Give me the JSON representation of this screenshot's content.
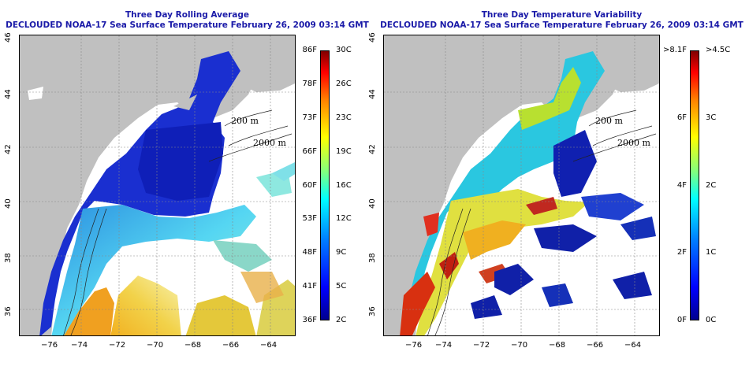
{
  "panels": [
    {
      "title": "Three Day Rolling Average",
      "subtitle": "DECLOUDED NOAA-17 Sea Surface Temperature February 26, 2009 03:14 GMT",
      "contours": [
        "200 m",
        "2000 m"
      ],
      "colorbar": {
        "fahrenheit": [
          "86F",
          "78F",
          "73F",
          "66F",
          "60F",
          "53F",
          "48F",
          "41F",
          "36F"
        ],
        "celsius": [
          "30C",
          "26C",
          "23C",
          "19C",
          "16C",
          "12C",
          "9C",
          "5C",
          "2C"
        ]
      }
    },
    {
      "title": "Three Day Temperature Variability",
      "subtitle": "DECLOUDED NOAA-17 Sea Surface Temperature February 26, 2009 03:14 GMT",
      "contours": [
        "200 m",
        "2000 m"
      ],
      "colorbar": {
        "fahrenheit": [
          ">8.1F",
          "6F",
          "4F",
          "2F",
          "0F"
        ],
        "celsius": [
          ">4.5C",
          "3C",
          "2C",
          "1C",
          "0C"
        ]
      }
    }
  ],
  "x_ticks": [
    "−76",
    "−74",
    "−72",
    "−70",
    "−68",
    "−66",
    "−64"
  ],
  "y_ticks": [
    "46",
    "44",
    "42",
    "40",
    "38",
    "36"
  ],
  "land_color": "#c0c0c0",
  "title_color": "#1a1aa8"
}
